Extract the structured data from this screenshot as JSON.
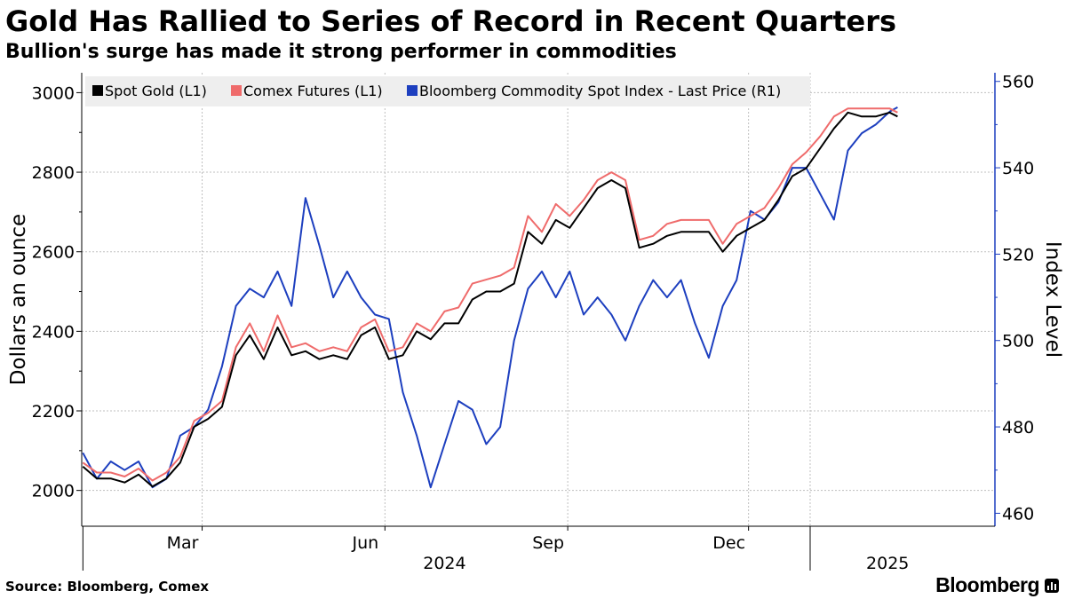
{
  "title": "Gold Has Rallied to Series of Record in Recent Quarters",
  "subtitle": "Bullion's surge has made it strong performer in commodities",
  "source": "Source: Bloomberg, Comex",
  "brand": "Bloomberg",
  "colors": {
    "spot_gold": "#000000",
    "comex": "#ef6b6b",
    "bcom": "#1d3fbf",
    "grid": "#bfbfbf",
    "right_axis": "#1d3fbf",
    "legend_bg": "#eeeeee"
  },
  "chart_data": {
    "type": "line",
    "title": "Gold Has Rallied to Series of Record in Recent Quarters",
    "ylabel_left": "Dollars an ounce",
    "ylabel_right": "Index Level",
    "ylim_left": [
      1910,
      3050
    ],
    "ylim_right": [
      457,
      562
    ],
    "left_ticks": [
      "2000",
      "2200",
      "2400",
      "2600",
      "2800",
      "3000"
    ],
    "right_ticks": [
      "460",
      "480",
      "500",
      "520",
      "540",
      "560"
    ],
    "x_range_days": [
      -0.6,
      459
    ],
    "x_month_ticks": [
      {
        "label": "Mar",
        "day": 60
      },
      {
        "label": "Jun",
        "day": 152
      },
      {
        "label": "Sep",
        "day": 244
      },
      {
        "label": "Dec",
        "day": 335
      },
      {
        "label": "",
        "day": 366
      }
    ],
    "x_year_labels": [
      {
        "label": "2024",
        "day": 182
      },
      {
        "label": "2025",
        "day": 405
      }
    ],
    "grid": true,
    "legend_position": "top-left",
    "series": [
      {
        "name": "Spot Gold (L1)",
        "axis": "left",
        "days": [
          0,
          7,
          14,
          21,
          28,
          35,
          42,
          49,
          56,
          63,
          70,
          77,
          84,
          91,
          98,
          105,
          112,
          119,
          126,
          133,
          140,
          147,
          154,
          161,
          168,
          175,
          182,
          189,
          196,
          203,
          210,
          217,
          224,
          231,
          238,
          245,
          252,
          259,
          266,
          273,
          280,
          287,
          294,
          301,
          308,
          315,
          322,
          329,
          336,
          343,
          350,
          357,
          364,
          371,
          378,
          385,
          392,
          399,
          406,
          410
        ],
        "values": [
          2060,
          2030,
          2030,
          2020,
          2040,
          2010,
          2030,
          2070,
          2160,
          2180,
          2210,
          2340,
          2390,
          2330,
          2410,
          2340,
          2350,
          2330,
          2340,
          2330,
          2390,
          2410,
          2330,
          2340,
          2400,
          2380,
          2420,
          2420,
          2480,
          2500,
          2500,
          2520,
          2650,
          2620,
          2680,
          2660,
          2710,
          2760,
          2780,
          2760,
          2610,
          2620,
          2640,
          2650,
          2650,
          2650,
          2600,
          2640,
          2660,
          2680,
          2730,
          2790,
          2810,
          2860,
          2910,
          2950,
          2940,
          2940,
          2950,
          2940
        ]
      },
      {
        "name": "Comex Futures (L1)",
        "axis": "left",
        "days": [
          0,
          7,
          14,
          21,
          28,
          35,
          42,
          49,
          56,
          63,
          70,
          77,
          84,
          91,
          98,
          105,
          112,
          119,
          126,
          133,
          140,
          147,
          154,
          161,
          168,
          175,
          182,
          189,
          196,
          203,
          210,
          217,
          224,
          231,
          238,
          245,
          252,
          259,
          266,
          273,
          280,
          287,
          294,
          301,
          308,
          315,
          322,
          329,
          336,
          343,
          350,
          357,
          364,
          371,
          378,
          385,
          392,
          399,
          406,
          410
        ],
        "values": [
          2070,
          2045,
          2045,
          2035,
          2055,
          2025,
          2045,
          2085,
          2175,
          2195,
          2225,
          2360,
          2420,
          2350,
          2440,
          2360,
          2370,
          2350,
          2360,
          2350,
          2410,
          2430,
          2350,
          2360,
          2420,
          2400,
          2450,
          2460,
          2520,
          2530,
          2540,
          2560,
          2690,
          2650,
          2720,
          2690,
          2730,
          2780,
          2800,
          2780,
          2630,
          2640,
          2670,
          2680,
          2680,
          2680,
          2620,
          2670,
          2690,
          2710,
          2760,
          2820,
          2850,
          2890,
          2940,
          2960,
          2960,
          2960,
          2960,
          2950
        ]
      },
      {
        "name": "Bloomberg Commodity Spot Index - Last Price (R1)",
        "axis": "right",
        "days": [
          0,
          7,
          14,
          21,
          28,
          35,
          42,
          49,
          56,
          63,
          70,
          77,
          84,
          91,
          98,
          105,
          112,
          119,
          126,
          133,
          140,
          147,
          154,
          161,
          168,
          175,
          182,
          189,
          196,
          203,
          210,
          217,
          224,
          231,
          238,
          245,
          252,
          259,
          266,
          273,
          280,
          287,
          294,
          301,
          308,
          315,
          322,
          329,
          336,
          343,
          350,
          357,
          364,
          371,
          378,
          385,
          392,
          399,
          406,
          410
        ],
        "values": [
          474,
          468,
          472,
          470,
          472,
          466,
          468,
          478,
          480,
          484,
          494,
          508,
          512,
          510,
          516,
          508,
          533,
          522,
          510,
          516,
          510,
          506,
          505,
          488,
          478,
          466,
          476,
          486,
          484,
          476,
          480,
          500,
          512,
          516,
          510,
          516,
          506,
          510,
          506,
          500,
          508,
          514,
          510,
          514,
          504,
          496,
          508,
          514,
          530,
          528,
          532,
          540,
          540,
          534,
          528,
          544,
          548,
          550,
          553,
          554
        ]
      }
    ]
  }
}
